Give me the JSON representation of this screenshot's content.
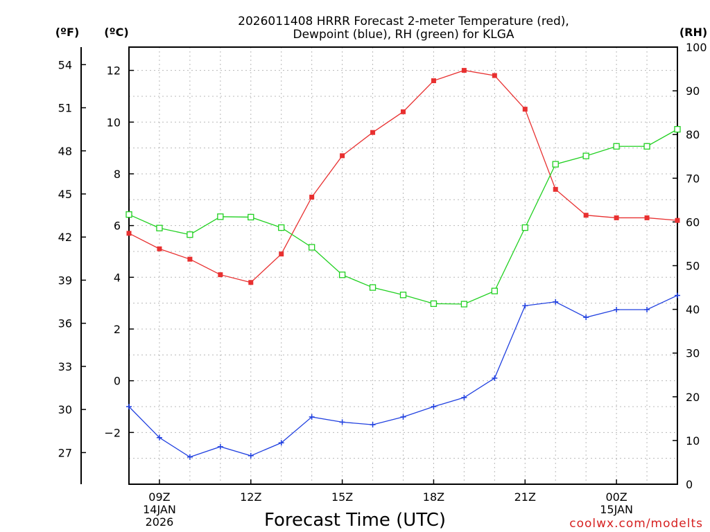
{
  "chart_data": {
    "type": "line",
    "title_line1": "2026011408 HRRR Forecast 2-meter Temperature (red),",
    "title_line2": "Dewpoint (blue), RH (green) for KLGA",
    "xlabel": "Forecast Time (UTC)",
    "credit": "coolwx.com/modelts",
    "units": {
      "fahrenheit": "(ºF)",
      "celsius": "(ºC)",
      "rh": "(RH)"
    },
    "x_ticks": [
      {
        "hour": 9,
        "lines": [
          "09Z",
          "14JAN",
          "2026"
        ]
      },
      {
        "hour": 12,
        "lines": [
          "12Z"
        ]
      },
      {
        "hour": 15,
        "lines": [
          "15Z"
        ]
      },
      {
        "hour": 18,
        "lines": [
          "18Z"
        ]
      },
      {
        "hour": 21,
        "lines": [
          "21Z"
        ]
      },
      {
        "hour": 24,
        "lines": [
          "00Z",
          "15JAN"
        ]
      }
    ],
    "x_range": [
      8,
      26
    ],
    "hours": [
      8,
      9,
      10,
      11,
      12,
      13,
      14,
      15,
      16,
      17,
      18,
      19,
      20,
      21,
      22,
      23,
      24,
      25,
      26
    ],
    "celsius_axis": {
      "range": [
        -4,
        12.9
      ],
      "ticks": [
        "-2",
        "0",
        "2",
        "4",
        "6",
        "8",
        "10",
        "12"
      ]
    },
    "fahrenheit_axis": {
      "ticks": [
        "27",
        "30",
        "33",
        "36",
        "39",
        "42",
        "45",
        "48",
        "51",
        "54"
      ]
    },
    "rh_axis": {
      "range": [
        0,
        100
      ],
      "ticks": [
        "0",
        "10",
        "20",
        "30",
        "40",
        "50",
        "60",
        "70",
        "80",
        "90",
        "100"
      ]
    },
    "series": [
      {
        "name": "Temperature",
        "unit": "C",
        "color": "#e83030",
        "marker": "filled-square",
        "values": [
          5.7,
          5.1,
          4.7,
          4.1,
          3.8,
          4.9,
          7.1,
          8.7,
          9.6,
          10.4,
          11.6,
          12.0,
          11.8,
          10.5,
          7.4,
          6.4,
          6.3,
          6.3,
          6.2
        ]
      },
      {
        "name": "Dewpoint",
        "unit": "C",
        "color": "#2040e0",
        "marker": "plus",
        "values": [
          -1.0,
          -2.2,
          -2.95,
          -2.55,
          -2.9,
          -2.4,
          -1.4,
          -1.6,
          -1.7,
          -1.4,
          -1.0,
          -0.65,
          0.1,
          2.9,
          3.05,
          2.45,
          2.75,
          2.75,
          3.3
        ]
      },
      {
        "name": "RH",
        "unit": "%",
        "color": "#20d020",
        "marker": "open-square",
        "values": [
          61.7,
          58.6,
          57.1,
          61.2,
          61.1,
          58.7,
          54.2,
          47.9,
          45.0,
          43.3,
          41.3,
          41.2,
          44.2,
          58.7,
          73.2,
          75.1,
          77.3,
          77.3,
          81.2
        ]
      }
    ]
  }
}
